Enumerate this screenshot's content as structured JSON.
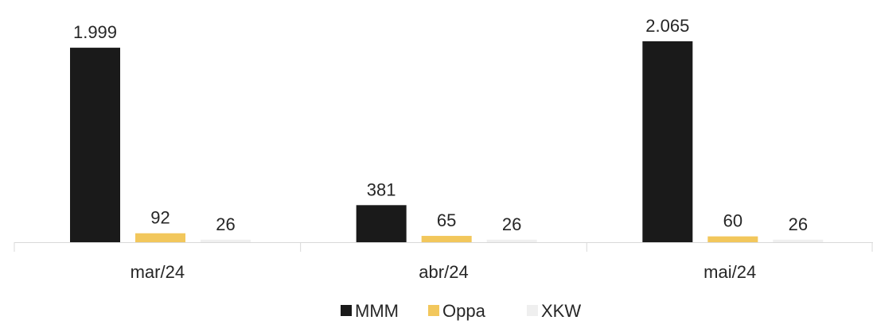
{
  "chart_data": {
    "type": "bar",
    "categories": [
      "mar/24",
      "abr/24",
      "mai/24"
    ],
    "series": [
      {
        "name": "MMM",
        "values": [
          1999,
          381,
          2065
        ],
        "labels": [
          "1.999",
          "381",
          "2.065"
        ],
        "color": "#1a1a1a"
      },
      {
        "name": "Oppa",
        "values": [
          92,
          65,
          60
        ],
        "labels": [
          "92",
          "65",
          "60"
        ],
        "color": "#f2c75c"
      },
      {
        "name": "XKW",
        "values": [
          26,
          26,
          26
        ],
        "labels": [
          "26",
          "26",
          "26"
        ],
        "color": "#efefef"
      }
    ],
    "title": "",
    "xlabel": "",
    "ylabel": "",
    "ylim": [
      0,
      2065
    ],
    "grid": false,
    "legend": "bottom"
  }
}
